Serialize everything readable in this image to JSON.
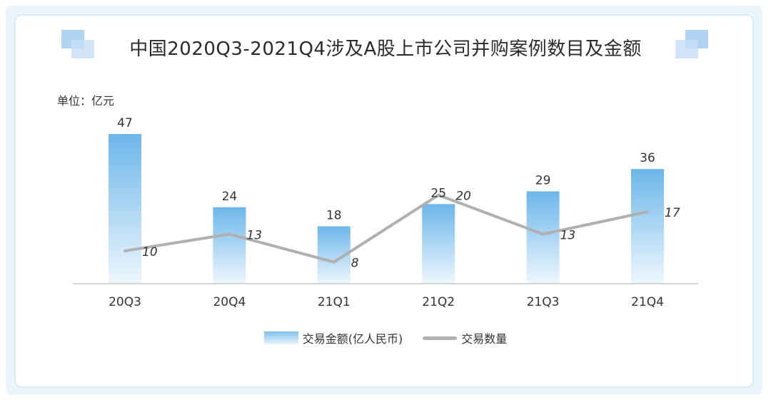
{
  "title": "中国2020Q3-2021Q4涉及A股上市公司并购案例数目及金额",
  "unit_label": "单位：亿元",
  "colors": {
    "bar_top": "#6cb6ea",
    "bar_bottom": "#eef7fe",
    "line": "#b0b0b0",
    "axis": "#c8c8c8",
    "frame": "#dcebf6"
  },
  "chart_data": {
    "type": "bar",
    "categories": [
      "20Q3",
      "20Q4",
      "21Q1",
      "21Q2",
      "21Q3",
      "21Q4"
    ],
    "series": [
      {
        "name": "交易金额(亿人民币)",
        "type": "bar",
        "values": [
          47,
          24,
          18,
          25,
          29,
          36
        ]
      },
      {
        "name": "交易数量",
        "type": "line",
        "values": [
          10,
          13,
          8,
          20,
          13,
          17
        ]
      }
    ],
    "legend_position": "bottom",
    "grid": false
  }
}
